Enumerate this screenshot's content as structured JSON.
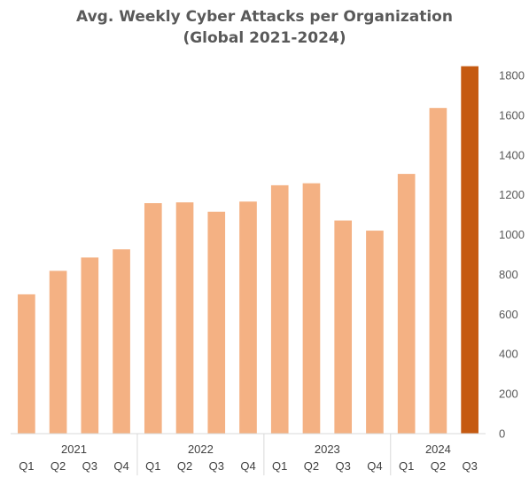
{
  "chart_data": {
    "type": "bar",
    "title_line1": "Avg. Weekly Cyber Attacks per Organization",
    "title_line2": "(Global 2021-2024)",
    "xlabel": "",
    "ylabel": "",
    "ylim": [
      0,
      1800
    ],
    "yticks": [
      "0",
      "200",
      "400",
      "600",
      "800",
      "1000",
      "1200",
      "1400",
      "1600",
      "1800"
    ],
    "y_axis_position": "right",
    "grid": false,
    "categories": [
      "Q1",
      "Q2",
      "Q3",
      "Q4",
      "Q1",
      "Q2",
      "Q3",
      "Q4",
      "Q1",
      "Q2",
      "Q3",
      "Q4",
      "Q1",
      "Q2",
      "Q3"
    ],
    "years": [
      {
        "label": "2021",
        "count": 4
      },
      {
        "label": "2022",
        "count": 4
      },
      {
        "label": "2023",
        "count": 4
      },
      {
        "label": "2024",
        "count": 3
      }
    ],
    "values": [
      700,
      818,
      885,
      926,
      1158,
      1162,
      1115,
      1166,
      1248,
      1258,
      1071,
      1020,
      1305,
      1636,
      1846
    ],
    "colors": {
      "bar": "#F4B183",
      "highlight": "#C55A11",
      "axis": "#D9D9D9",
      "text": "#595959"
    },
    "highlight_index": 14
  }
}
